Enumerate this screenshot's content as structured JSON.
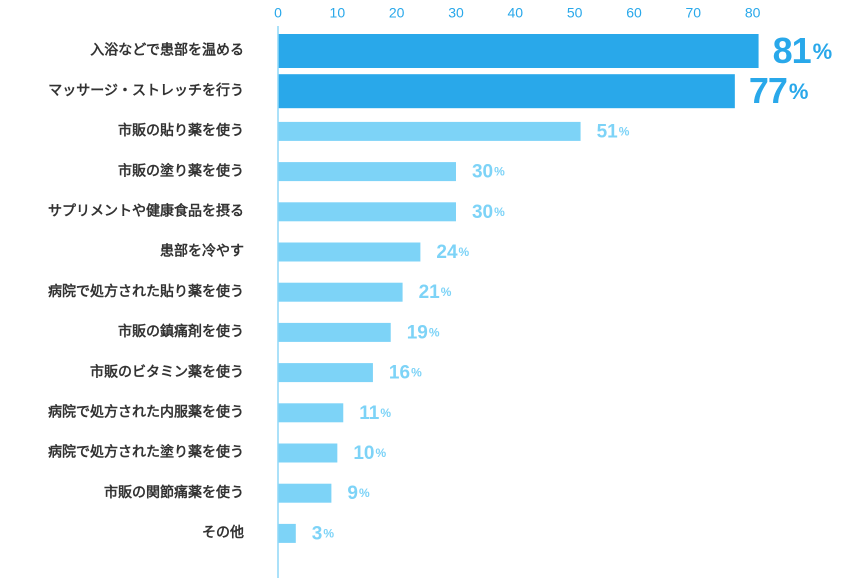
{
  "colors": {
    "accent": "#29a8ea",
    "highlight_bar": "#29a8ea",
    "normal_bar": "#7dd3f7",
    "label_text": "#333333",
    "axis_line": "#8fd7f7"
  },
  "chart_data": {
    "type": "bar",
    "orientation": "horizontal",
    "title": "",
    "xlabel": "",
    "ylabel": "",
    "xlim": [
      0,
      80
    ],
    "ticks": [
      0,
      10,
      20,
      30,
      40,
      50,
      60,
      70,
      80
    ],
    "tick_labels": [
      "0",
      "10",
      "20",
      "30",
      "40",
      "50",
      "60",
      "70",
      "80"
    ],
    "unit": "%",
    "grid": false,
    "legend": "none",
    "categories": [
      "入浴などで患部を温める",
      "マッサージ・ストレッチを行う",
      "市販の貼り薬を使う",
      "市販の塗り薬を使う",
      "サプリメントや健康食品を摂る",
      "患部を冷やす",
      "病院で処方された貼り薬を使う",
      "市販の鎮痛剤を使う",
      "市販のビタミン薬を使う",
      "病院で処方された内服薬を使う",
      "病院で処方された塗り薬を使う",
      "市販の関節痛薬を使う",
      "その他"
    ],
    "values": [
      81,
      77,
      51,
      30,
      30,
      24,
      21,
      19,
      16,
      11,
      10,
      9,
      3
    ],
    "highlighted": [
      true,
      true,
      false,
      false,
      false,
      false,
      false,
      false,
      false,
      false,
      false,
      false,
      false
    ]
  }
}
